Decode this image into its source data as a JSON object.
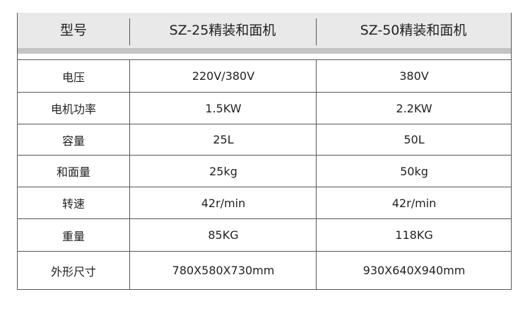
{
  "header": [
    "型号",
    "SZ-25精装和面机",
    "SZ-50精装和面机"
  ],
  "rows": [
    [
      "电压",
      "220V/380V",
      "380V"
    ],
    [
      "电机功率",
      "1.5KW",
      "2.2KW"
    ],
    [
      "容量",
      "25L",
      "50L"
    ],
    [
      "和面量",
      "25kg",
      "50kg"
    ],
    [
      "转速",
      "42r/min",
      "42r/min"
    ],
    [
      "重量",
      "85KG",
      "118KG"
    ],
    [
      "外形尺寸",
      "780X580X730mm",
      "930X640X940mm"
    ]
  ]
}
